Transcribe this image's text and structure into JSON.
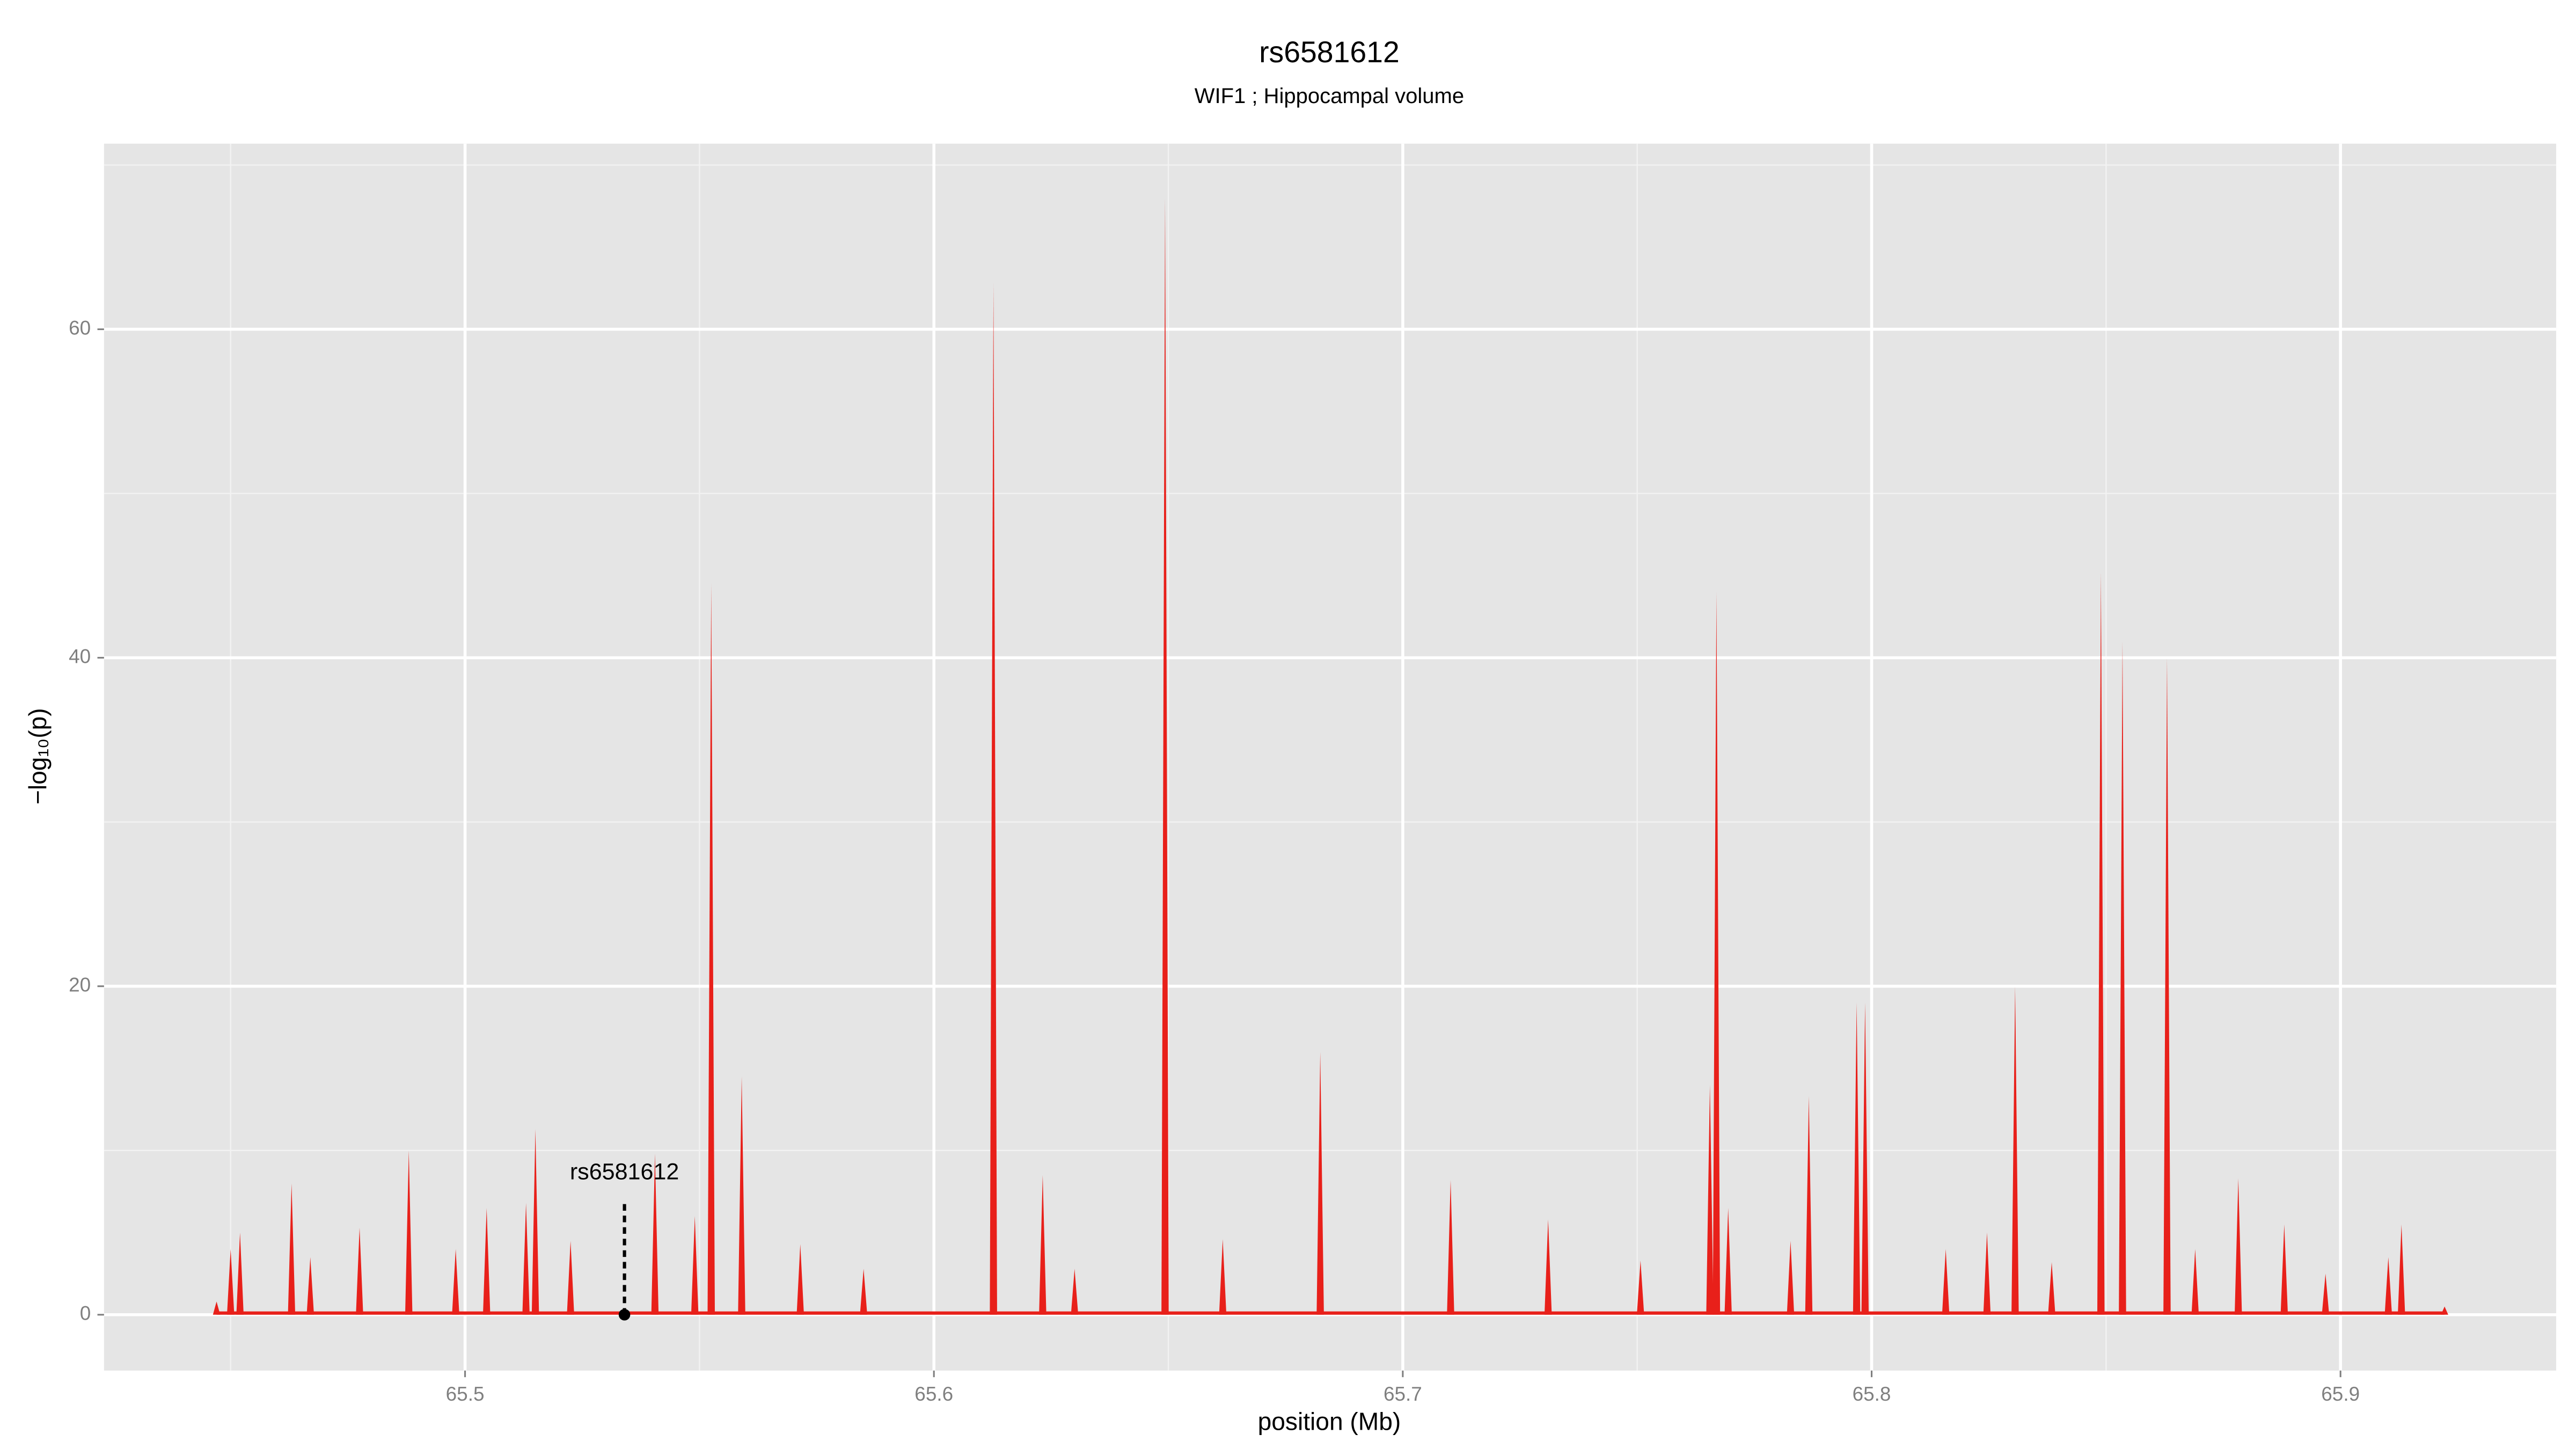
{
  "chart_data": {
    "type": "spike",
    "title": "rs6581612",
    "subtitle": "WIF1 ; Hippocampal volume",
    "xlabel": "position (Mb)",
    "ylabel": "−log₁₀(p)",
    "x": [
      65.447,
      65.45,
      65.452,
      65.463,
      65.467,
      65.4775,
      65.488,
      65.498,
      65.5046,
      65.513,
      65.515,
      65.5225,
      65.5405,
      65.549,
      65.5525,
      65.559,
      65.5715,
      65.585,
      65.6127,
      65.6232,
      65.63,
      65.6493,
      65.6616,
      65.6824,
      65.7102,
      65.731,
      65.7507,
      65.7655,
      65.7669,
      65.7694,
      65.7827,
      65.7866,
      65.7968,
      65.7986,
      65.8158,
      65.8246,
      65.8306,
      65.8384,
      65.8489,
      65.8535,
      65.863,
      65.869,
      65.8782,
      65.888,
      65.8968,
      65.9102,
      65.913,
      65.9222
    ],
    "values": [
      0.8,
      4,
      5,
      8,
      3.5,
      5.3,
      10,
      4,
      6.5,
      6.8,
      11.3,
      4.5,
      9.8,
      6,
      44.5,
      14.5,
      4.3,
      2.8,
      62.8,
      8.5,
      2.8,
      68,
      4.6,
      16,
      8.2,
      5.8,
      3.3,
      14,
      44,
      6.5,
      4.5,
      13.3,
      19,
      19,
      4,
      5,
      20,
      3.2,
      45.2,
      41,
      40,
      4,
      8.3,
      5.5,
      2.5,
      3.5,
      5.5,
      0.5
    ],
    "color": "#e8201a",
    "annotation": {
      "label": "rs6581612",
      "x": 65.534,
      "y": 0,
      "line_top": 7
    },
    "xlim": [
      65.423,
      65.946
    ],
    "ylim": [
      -3.4,
      71.3
    ],
    "xticks": [
      65.5,
      65.6,
      65.7,
      65.8,
      65.9
    ],
    "yticks": [
      0,
      20,
      40,
      60
    ],
    "xminor": [
      65.45,
      65.55,
      65.65,
      65.75,
      65.85
    ],
    "yminor": [
      10,
      30,
      50,
      70
    ],
    "grid": true,
    "background": "#e5e5e5"
  }
}
